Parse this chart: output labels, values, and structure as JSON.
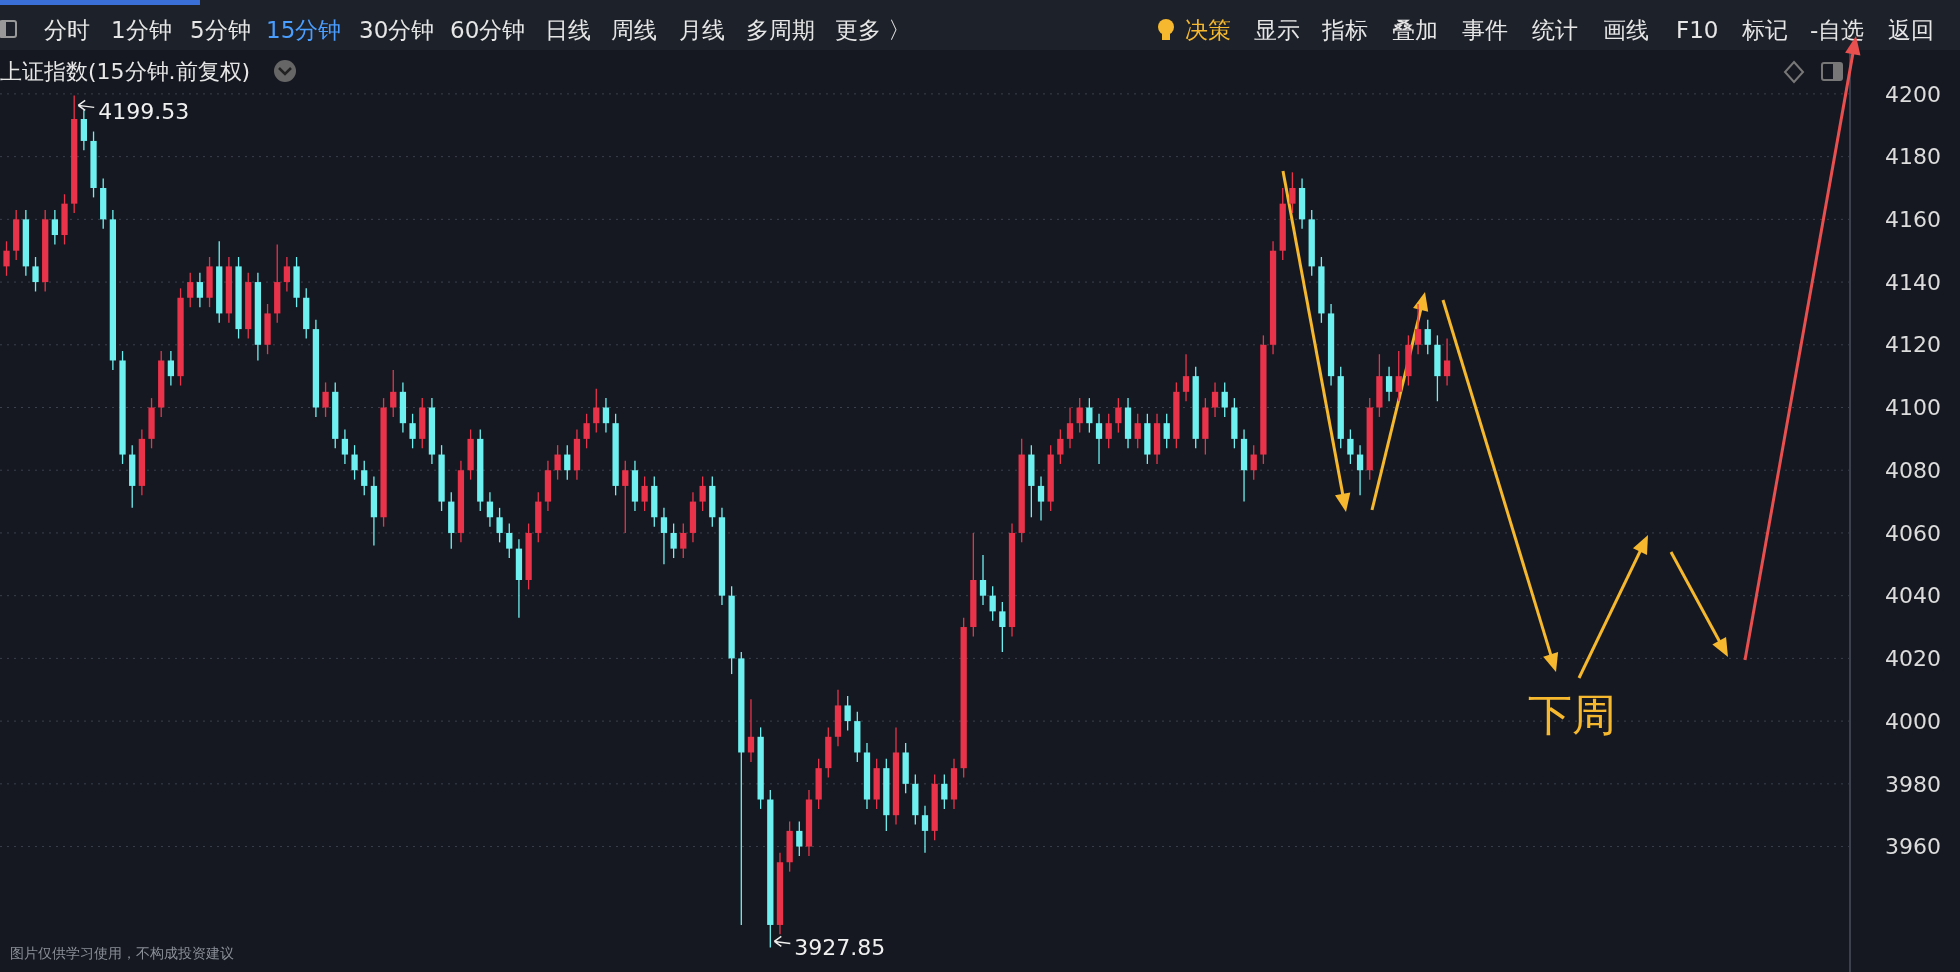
{
  "chart_data": {
    "type": "candlestick",
    "title": "上证指数(15分钟.前复权)",
    "categories": [
      null,
      null,
      null,
      null,
      null,
      null,
      null,
      null,
      null,
      null,
      null,
      null,
      null,
      null,
      null,
      null,
      null,
      null,
      null,
      null,
      null,
      null,
      null,
      null,
      null,
      null,
      null,
      null,
      null,
      null,
      null,
      null,
      null,
      null,
      null,
      null,
      null,
      null,
      null,
      null,
      null,
      null,
      null,
      null,
      null,
      null,
      null,
      null,
      null,
      null,
      null,
      null,
      null,
      null,
      null,
      null,
      null,
      null,
      null,
      null,
      null,
      null,
      null,
      null,
      null,
      null,
      null,
      null,
      null,
      null,
      null,
      null,
      null,
      null,
      null,
      null,
      null,
      null,
      null,
      null,
      null,
      null,
      null,
      null,
      null,
      null,
      null,
      null,
      null,
      null,
      null,
      null,
      null,
      null,
      null,
      null,
      null,
      null,
      null,
      null,
      null,
      null,
      null,
      null,
      null,
      null,
      null,
      null,
      null,
      null,
      null,
      null,
      null,
      null,
      null,
      null,
      null,
      null,
      null,
      null,
      null,
      null,
      null,
      null,
      null,
      null,
      null,
      null,
      null,
      null,
      null,
      null,
      null,
      null,
      null,
      null,
      null,
      null,
      null,
      null,
      null,
      null,
      null,
      null,
      null,
      null,
      null,
      null,
      null,
      null,
      null,
      null,
      null,
      null,
      null,
      null,
      null,
      null,
      null,
      null,
      null,
      null,
      null,
      null,
      null,
      null,
      null,
      null,
      null,
      null,
      null,
      null,
      null,
      null,
      null,
      null,
      null,
      null,
      null,
      null,
      null,
      null,
      null,
      null,
      null,
      null,
      null,
      null,
      null,
      null,
      null
    ],
    "ohlc": [
      [
        4145,
        4153,
        4142,
        4150
      ],
      [
        4150,
        4163,
        4147,
        4160
      ],
      [
        4160,
        4163,
        4142,
        4145
      ],
      [
        4145,
        4148,
        4137,
        4140
      ],
      [
        4140,
        4163,
        4137,
        4160
      ],
      [
        4160,
        4163,
        4152,
        4155
      ],
      [
        4155,
        4168,
        4152,
        4165
      ],
      [
        4165,
        4199.53,
        4162,
        4192
      ],
      [
        4192,
        4195,
        4182,
        4185
      ],
      [
        4185,
        4188,
        4167,
        4170
      ],
      [
        4170,
        4173,
        4157,
        4160
      ],
      [
        4160,
        4163,
        4112,
        4115
      ],
      [
        4115,
        4118,
        4082,
        4085
      ],
      [
        4085,
        4088,
        4068,
        4075
      ],
      [
        4075,
        4093,
        4072,
        4090
      ],
      [
        4090,
        4103,
        4087,
        4100
      ],
      [
        4100,
        4118,
        4097,
        4115
      ],
      [
        4115,
        4118,
        4107,
        4110
      ],
      [
        4110,
        4138,
        4107,
        4135
      ],
      [
        4135,
        4143,
        4132,
        4140
      ],
      [
        4140,
        4143,
        4132,
        4135
      ],
      [
        4135,
        4148,
        4132,
        4145
      ],
      [
        4145,
        4153,
        4127,
        4130
      ],
      [
        4130,
        4148,
        4127,
        4145
      ],
      [
        4145,
        4148,
        4122,
        4125
      ],
      [
        4125,
        4143,
        4122,
        4140
      ],
      [
        4140,
        4143,
        4115,
        4120
      ],
      [
        4120,
        4133,
        4117,
        4130
      ],
      [
        4130,
        4152,
        4127,
        4140
      ],
      [
        4140,
        4148,
        4137,
        4145
      ],
      [
        4145,
        4148,
        4132,
        4135
      ],
      [
        4135,
        4138,
        4122,
        4125
      ],
      [
        4125,
        4128,
        4097,
        4100
      ],
      [
        4100,
        4108,
        4097,
        4105
      ],
      [
        4105,
        4108,
        4087,
        4090
      ],
      [
        4090,
        4093,
        4082,
        4085
      ],
      [
        4085,
        4088,
        4077,
        4080
      ],
      [
        4080,
        4083,
        4072,
        4075
      ],
      [
        4075,
        4078,
        4056,
        4065
      ],
      [
        4065,
        4103,
        4062,
        4100
      ],
      [
        4100,
        4112,
        4097,
        4105
      ],
      [
        4105,
        4108,
        4092,
        4095
      ],
      [
        4095,
        4098,
        4087,
        4090
      ],
      [
        4090,
        4103,
        4087,
        4100
      ],
      [
        4100,
        4103,
        4082,
        4085
      ],
      [
        4085,
        4088,
        4067,
        4070
      ],
      [
        4070,
        4073,
        4055,
        4060
      ],
      [
        4060,
        4083,
        4057,
        4080
      ],
      [
        4080,
        4093,
        4077,
        4090
      ],
      [
        4090,
        4093,
        4067,
        4070
      ],
      [
        4070,
        4073,
        4062,
        4065
      ],
      [
        4065,
        4068,
        4057,
        4060
      ],
      [
        4060,
        4063,
        4052,
        4055
      ],
      [
        4055,
        4058,
        4033,
        4045
      ],
      [
        4045,
        4063,
        4042,
        4060
      ],
      [
        4060,
        4073,
        4057,
        4070
      ],
      [
        4070,
        4083,
        4067,
        4080
      ],
      [
        4080,
        4088,
        4077,
        4085
      ],
      [
        4085,
        4088,
        4077,
        4080
      ],
      [
        4080,
        4093,
        4077,
        4090
      ],
      [
        4090,
        4098,
        4087,
        4095
      ],
      [
        4095,
        4106,
        4092,
        4100
      ],
      [
        4100,
        4103,
        4092,
        4095
      ],
      [
        4095,
        4098,
        4072,
        4075
      ],
      [
        4075,
        4083,
        4060,
        4080
      ],
      [
        4080,
        4083,
        4067,
        4070
      ],
      [
        4070,
        4078,
        4067,
        4075
      ],
      [
        4075,
        4078,
        4062,
        4065
      ],
      [
        4065,
        4068,
        4050,
        4060
      ],
      [
        4060,
        4063,
        4052,
        4055
      ],
      [
        4055,
        4063,
        4052,
        4060
      ],
      [
        4060,
        4073,
        4057,
        4070
      ],
      [
        4070,
        4078,
        4067,
        4075
      ],
      [
        4075,
        4078,
        4062,
        4065
      ],
      [
        4065,
        4068,
        4037,
        4040
      ],
      [
        4040,
        4043,
        4015,
        4020
      ],
      [
        4020,
        4022,
        3935,
        3990
      ],
      [
        3990,
        4007,
        3987,
        3995
      ],
      [
        3995,
        3998,
        3972,
        3975
      ],
      [
        3975,
        3978,
        3927.85,
        3935
      ],
      [
        3935,
        3958,
        3932,
        3955
      ],
      [
        3955,
        3968,
        3952,
        3965
      ],
      [
        3965,
        3968,
        3957,
        3960
      ],
      [
        3960,
        3978,
        3957,
        3975
      ],
      [
        3975,
        3988,
        3972,
        3985
      ],
      [
        3985,
        3998,
        3982,
        3995
      ],
      [
        3995,
        4010,
        3992,
        4005
      ],
      [
        4005,
        4008,
        3997,
        4000
      ],
      [
        4000,
        4003,
        3987,
        3990
      ],
      [
        3990,
        3993,
        3972,
        3975
      ],
      [
        3975,
        3988,
        3972,
        3985
      ],
      [
        3985,
        3988,
        3965,
        3970
      ],
      [
        3970,
        3998,
        3967,
        3990
      ],
      [
        3990,
        3993,
        3977,
        3980
      ],
      [
        3980,
        3983,
        3967,
        3970
      ],
      [
        3970,
        3973,
        3958,
        3965
      ],
      [
        3965,
        3983,
        3962,
        3980
      ],
      [
        3980,
        3983,
        3972,
        3975
      ],
      [
        3975,
        3988,
        3972,
        3985
      ],
      [
        3985,
        4033,
        3982,
        4030
      ],
      [
        4030,
        4060,
        4027,
        4045
      ],
      [
        4045,
        4053,
        4037,
        4040
      ],
      [
        4040,
        4043,
        4032,
        4035
      ],
      [
        4035,
        4038,
        4022,
        4030
      ],
      [
        4030,
        4063,
        4027,
        4060
      ],
      [
        4060,
        4090,
        4057,
        4085
      ],
      [
        4085,
        4088,
        4065,
        4075
      ],
      [
        4075,
        4078,
        4064,
        4070
      ],
      [
        4070,
        4088,
        4067,
        4085
      ],
      [
        4085,
        4093,
        4082,
        4090
      ],
      [
        4090,
        4100,
        4087,
        4095
      ],
      [
        4095,
        4103,
        4092,
        4100
      ],
      [
        4100,
        4103,
        4092,
        4095
      ],
      [
        4095,
        4098,
        4082,
        4090
      ],
      [
        4090,
        4098,
        4087,
        4095
      ],
      [
        4095,
        4103,
        4092,
        4100
      ],
      [
        4100,
        4103,
        4087,
        4090
      ],
      [
        4090,
        4098,
        4087,
        4095
      ],
      [
        4095,
        4098,
        4082,
        4085
      ],
      [
        4085,
        4098,
        4082,
        4095
      ],
      [
        4095,
        4098,
        4087,
        4090
      ],
      [
        4090,
        4108,
        4087,
        4105
      ],
      [
        4105,
        4117,
        4102,
        4110
      ],
      [
        4110,
        4113,
        4087,
        4090
      ],
      [
        4090,
        4103,
        4085,
        4100
      ],
      [
        4100,
        4108,
        4097,
        4105
      ],
      [
        4105,
        4108,
        4097,
        4100
      ],
      [
        4100,
        4103,
        4087,
        4090
      ],
      [
        4090,
        4093,
        4070,
        4080
      ],
      [
        4080,
        4088,
        4077,
        4085
      ],
      [
        4085,
        4123,
        4082,
        4120
      ],
      [
        4120,
        4153,
        4117,
        4150
      ],
      [
        4150,
        4170,
        4147,
        4165
      ],
      [
        4165,
        4175,
        4162,
        4170
      ],
      [
        4170,
        4173,
        4157,
        4160
      ],
      [
        4160,
        4163,
        4142,
        4145
      ],
      [
        4145,
        4148,
        4127,
        4130
      ],
      [
        4130,
        4133,
        4107,
        4110
      ],
      [
        4110,
        4113,
        4087,
        4090
      ],
      [
        4090,
        4093,
        4082,
        4085
      ],
      [
        4085,
        4088,
        4072,
        4080
      ],
      [
        4080,
        4103,
        4077,
        4100
      ],
      [
        4100,
        4117,
        4097,
        4110
      ],
      [
        4110,
        4113,
        4102,
        4105
      ],
      [
        4105,
        4118,
        4102,
        4110
      ],
      [
        4110,
        4123,
        4107,
        4120
      ],
      [
        4120,
        4133,
        4117,
        4125
      ],
      [
        4125,
        4128,
        4117,
        4120
      ],
      [
        4120,
        4123,
        4102,
        4110
      ],
      [
        4110,
        4122,
        4107,
        4115
      ],
      null,
      null,
      null,
      null,
      null,
      null,
      null,
      null,
      null,
      null,
      null,
      null,
      null,
      null,
      null,
      null,
      null,
      null,
      null,
      null,
      null,
      null,
      null,
      null,
      null,
      null,
      null,
      null,
      null,
      null,
      null,
      null,
      null,
      null,
      null,
      null,
      null,
      null,
      null,
      null,
      null
    ],
    "ylim": [
      3920,
      4214
    ],
    "yticks": [
      3960,
      3980,
      4000,
      4020,
      4040,
      4060,
      4080,
      4100,
      4120,
      4140,
      4160,
      4180,
      4200
    ],
    "grid": "y",
    "annotations": [
      "分时",
      "1分钟",
      "5分钟",
      "15分钟",
      "30分钟",
      "60分钟",
      "日线",
      "周线",
      "月线",
      "多周期",
      "更多 〉",
      "决策",
      "显示",
      "指标",
      "叠加",
      "事件",
      "统计",
      "画线",
      "F10",
      "标记",
      "-自选",
      "返回",
      "4199.53",
      "3927.85",
      "下周",
      "图片仅供学习使用，不构成投资建议"
    ]
  }
}
